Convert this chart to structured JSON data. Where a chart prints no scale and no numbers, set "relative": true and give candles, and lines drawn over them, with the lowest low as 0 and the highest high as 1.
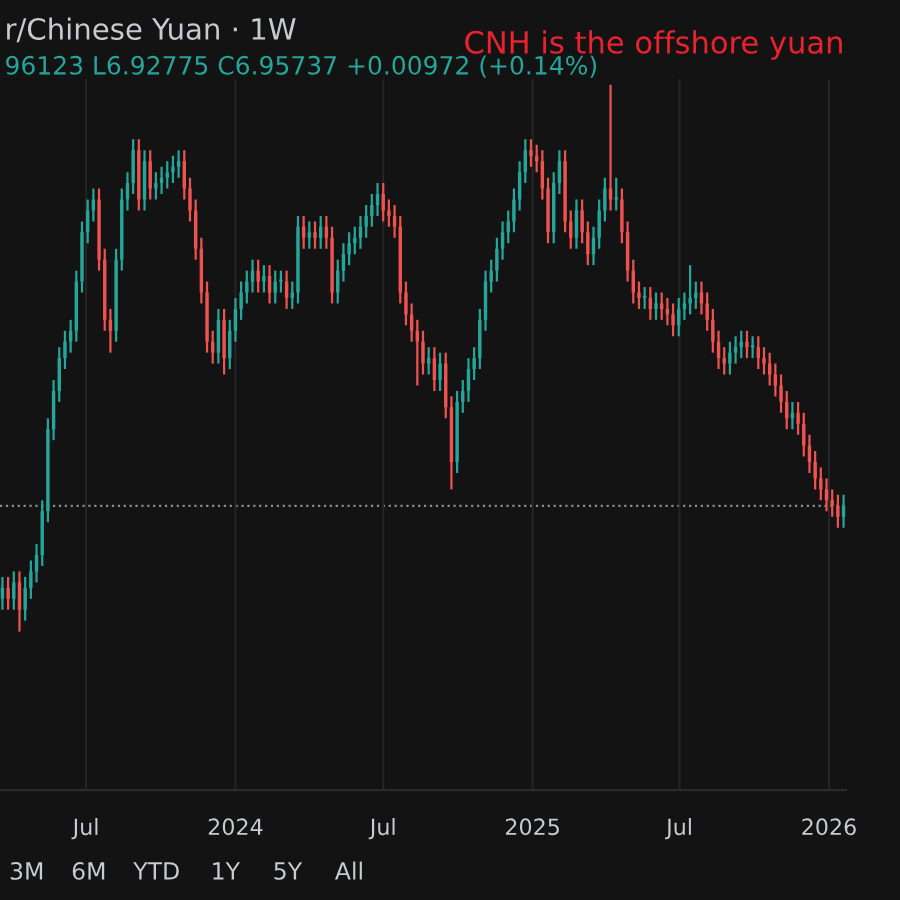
{
  "chart_data": {
    "type": "candlestick",
    "title": "r/Chinese Yuan · 1W",
    "subtitle": "96123 L6.92775 C6.95737 +0.00972 (+0.14%)",
    "annotations": [
      "CNH is the offshore yuan",
      "3M",
      "6M",
      "YTD",
      "1Y",
      "5Y",
      "All"
    ],
    "relative": true,
    "colors": [
      "#26a69a",
      "#ef5350",
      "#26a69a",
      "#ef5350",
      "#26a69a",
      "#26a69a",
      "#26a69a",
      "#26a69a",
      "#26a69a",
      "#26a69a",
      "#26a69a",
      "#26a69a",
      "#26a69a",
      "#26a69a",
      "#26a69a",
      "#26a69a",
      "#26a69a",
      "#ef5350",
      "#ef5350",
      "#ef5350",
      "#26a69a",
      "#26a69a",
      "#26a69a",
      "#26a69a",
      "#ef5350",
      "#26a69a",
      "#ef5350",
      "#26a69a",
      "#26a69a",
      "#26a69a",
      "#26a69a",
      "#26a69a",
      "#ef5350",
      "#ef5350",
      "#ef5350",
      "#ef5350",
      "#ef5350",
      "#ef5350",
      "#26a69a",
      "#ef5350",
      "#26a69a",
      "#26a69a",
      "#26a69a",
      "#26a69a",
      "#26a69a",
      "#ef5350",
      "#26a69a",
      "#ef5350",
      "#26a69a",
      "#26a69a",
      "#ef5350",
      "#26a69a",
      "#26a69a",
      "#ef5350",
      "#26a69a",
      "#ef5350",
      "#26a69a",
      "#ef5350",
      "#ef5350",
      "#26a69a",
      "#26a69a",
      "#26a69a",
      "#26a69a",
      "#26a69a",
      "#26a69a",
      "#26a69a",
      "#26a69a",
      "#ef5350",
      "#ef5350",
      "#ef5350",
      "#ef5350",
      "#ef5350",
      "#ef5350",
      "#ef5350",
      "#ef5350",
      "#26a69a",
      "#ef5350",
      "#26a69a",
      "#ef5350",
      "#ef5350",
      "#26a69a",
      "#26a69a",
      "#26a69a",
      "#26a69a",
      "#26a69a",
      "#26a69a",
      "#26a69a",
      "#26a69a",
      "#26a69a",
      "#26a69a",
      "#26a69a",
      "#26a69a",
      "#26a69a",
      "#ef5350",
      "#ef5350",
      "#ef5350",
      "#ef5350",
      "#26a69a",
      "#26a69a",
      "#ef5350",
      "#ef5350",
      "#26a69a",
      "#ef5350",
      "#ef5350",
      "#26a69a",
      "#26a69a",
      "#26a69a",
      "#ef5350",
      "#26a69a",
      "#ef5350",
      "#ef5350",
      "#ef5350",
      "#ef5350",
      "#26a69a",
      "#ef5350",
      "#26a69a",
      "#ef5350",
      "#ef5350",
      "#ef5350",
      "#26a69a",
      "#26a69a",
      "#26a69a",
      "#26a69a",
      "#ef5350",
      "#ef5350",
      "#ef5350",
      "#ef5350",
      "#ef5350",
      "#26a69a",
      "#26a69a",
      "#26a69a",
      "#ef5350",
      "#26a69a",
      "#ef5350",
      "#ef5350",
      "#ef5350",
      "#ef5350",
      "#ef5350",
      "#ef5350",
      "#26a69a",
      "#ef5350",
      "#ef5350",
      "#ef5350",
      "#ef5350",
      "#ef5350",
      "#ef5350",
      "#ef5350",
      "#ef5350",
      "#26a69a"
    ],
    "grid": "x",
    "xlim": [
      "2023-03-17",
      "2026-01-22"
    ],
    "xticks": [
      {
        "value": "2023-07-01",
        "label": "Jul"
      },
      {
        "value": "2024-01-01",
        "label": "2024"
      },
      {
        "value": "2024-07-01",
        "label": "Jul"
      },
      {
        "value": "2025-01-01",
        "label": "2025"
      },
      {
        "value": "2025-07-01",
        "label": "Jul"
      },
      {
        "value": "2026-01-01",
        "label": "2026"
      }
    ],
    "ref_lines": [
      {
        "axis": "y",
        "value": 0.23,
        "color": "#8a8a8a",
        "line_style": "dotted"
      }
    ],
    "x": [
      "2023-03-20",
      "2023-03-27",
      "2023-04-03",
      "2023-04-10",
      "2023-04-17",
      "2023-04-24",
      "2023-05-01",
      "2023-05-08",
      "2023-05-15",
      "2023-05-22",
      "2023-05-29",
      "2023-06-05",
      "2023-06-12",
      "2023-06-19",
      "2023-06-26",
      "2023-07-03",
      "2023-07-10",
      "2023-07-17",
      "2023-07-24",
      "2023-07-31",
      "2023-08-07",
      "2023-08-14",
      "2023-08-21",
      "2023-08-28",
      "2023-09-04",
      "2023-09-11",
      "2023-09-18",
      "2023-09-25",
      "2023-10-02",
      "2023-10-09",
      "2023-10-16",
      "2023-10-23",
      "2023-10-30",
      "2023-11-06",
      "2023-11-13",
      "2023-11-20",
      "2023-11-27",
      "2023-12-04",
      "2023-12-11",
      "2023-12-18",
      "2023-12-25",
      "2024-01-01",
      "2024-01-08",
      "2024-01-15",
      "2024-01-22",
      "2024-01-29",
      "2024-02-05",
      "2024-02-12",
      "2024-02-19",
      "2024-02-26",
      "2024-03-04",
      "2024-03-11",
      "2024-03-18",
      "2024-03-25",
      "2024-04-01",
      "2024-04-08",
      "2024-04-15",
      "2024-04-22",
      "2024-04-29",
      "2024-05-06",
      "2024-05-13",
      "2024-05-20",
      "2024-05-27",
      "2024-06-03",
      "2024-06-10",
      "2024-06-17",
      "2024-06-24",
      "2024-07-01",
      "2024-07-08",
      "2024-07-15",
      "2024-07-22",
      "2024-07-29",
      "2024-08-05",
      "2024-08-12",
      "2024-08-19",
      "2024-08-26",
      "2024-09-02",
      "2024-09-09",
      "2024-09-16",
      "2024-09-23",
      "2024-09-30",
      "2024-10-07",
      "2024-10-14",
      "2024-10-21",
      "2024-10-28",
      "2024-11-04",
      "2024-11-11",
      "2024-11-18",
      "2024-11-25",
      "2024-12-02",
      "2024-12-09",
      "2024-12-16",
      "2024-12-23",
      "2024-12-30",
      "2025-01-06",
      "2025-01-13",
      "2025-01-20",
      "2025-01-27",
      "2025-02-03",
      "2025-02-10",
      "2025-02-17",
      "2025-02-24",
      "2025-03-03",
      "2025-03-10",
      "2025-03-17",
      "2025-03-24",
      "2025-03-31",
      "2025-04-07",
      "2025-04-14",
      "2025-04-21",
      "2025-04-28",
      "2025-05-05",
      "2025-05-12",
      "2025-05-19",
      "2025-05-26",
      "2025-06-02",
      "2025-06-09",
      "2025-06-16",
      "2025-06-23",
      "2025-06-30",
      "2025-07-07",
      "2025-07-14",
      "2025-07-21",
      "2025-07-28",
      "2025-08-04",
      "2025-08-11",
      "2025-08-18",
      "2025-08-25",
      "2025-09-01",
      "2025-09-08",
      "2025-09-15",
      "2025-09-22",
      "2025-09-29",
      "2025-10-06",
      "2025-10-13",
      "2025-10-20",
      "2025-10-27",
      "2025-11-03",
      "2025-11-10",
      "2025-11-17",
      "2025-11-24",
      "2025-12-01",
      "2025-12-08",
      "2025-12-15",
      "2025-12-22",
      "2025-12-29",
      "2026-01-05",
      "2026-01-12",
      "2026-01-19"
    ],
    "ohlc": [
      [
        0.06,
        0.1,
        0.04,
        0.08
      ],
      [
        0.08,
        0.1,
        0.04,
        0.06
      ],
      [
        0.06,
        0.11,
        0.04,
        0.09
      ],
      [
        0.09,
        0.11,
        0.0,
        0.04
      ],
      [
        0.04,
        0.1,
        0.02,
        0.08
      ],
      [
        0.08,
        0.13,
        0.06,
        0.11
      ],
      [
        0.11,
        0.16,
        0.09,
        0.14
      ],
      [
        0.14,
        0.24,
        0.12,
        0.22
      ],
      [
        0.22,
        0.39,
        0.2,
        0.37
      ],
      [
        0.37,
        0.46,
        0.35,
        0.44
      ],
      [
        0.44,
        0.52,
        0.42,
        0.5
      ],
      [
        0.5,
        0.55,
        0.48,
        0.53
      ],
      [
        0.53,
        0.57,
        0.51,
        0.55
      ],
      [
        0.55,
        0.66,
        0.53,
        0.64
      ],
      [
        0.64,
        0.75,
        0.62,
        0.73
      ],
      [
        0.73,
        0.79,
        0.71,
        0.77
      ],
      [
        0.77,
        0.81,
        0.75,
        0.79
      ],
      [
        0.79,
        0.81,
        0.66,
        0.68
      ],
      [
        0.68,
        0.7,
        0.55,
        0.57
      ],
      [
        0.57,
        0.59,
        0.51,
        0.55
      ],
      [
        0.55,
        0.7,
        0.53,
        0.68
      ],
      [
        0.68,
        0.81,
        0.66,
        0.79
      ],
      [
        0.79,
        0.84,
        0.77,
        0.82
      ],
      [
        0.82,
        0.9,
        0.8,
        0.88
      ],
      [
        0.88,
        0.9,
        0.77,
        0.79
      ],
      [
        0.79,
        0.88,
        0.77,
        0.86
      ],
      [
        0.86,
        0.88,
        0.79,
        0.81
      ],
      [
        0.81,
        0.84,
        0.79,
        0.82
      ],
      [
        0.82,
        0.85,
        0.8,
        0.83
      ],
      [
        0.83,
        0.86,
        0.81,
        0.84
      ],
      [
        0.84,
        0.87,
        0.82,
        0.85
      ],
      [
        0.85,
        0.88,
        0.83,
        0.86
      ],
      [
        0.86,
        0.88,
        0.79,
        0.81
      ],
      [
        0.81,
        0.83,
        0.75,
        0.77
      ],
      [
        0.77,
        0.79,
        0.68,
        0.7
      ],
      [
        0.7,
        0.72,
        0.6,
        0.62
      ],
      [
        0.62,
        0.64,
        0.51,
        0.53
      ],
      [
        0.53,
        0.55,
        0.49,
        0.51
      ],
      [
        0.51,
        0.59,
        0.49,
        0.57
      ],
      [
        0.57,
        0.59,
        0.47,
        0.5
      ],
      [
        0.5,
        0.57,
        0.48,
        0.55
      ],
      [
        0.55,
        0.61,
        0.53,
        0.59
      ],
      [
        0.59,
        0.64,
        0.57,
        0.62
      ],
      [
        0.62,
        0.66,
        0.6,
        0.64
      ],
      [
        0.64,
        0.68,
        0.62,
        0.66
      ],
      [
        0.66,
        0.68,
        0.62,
        0.64
      ],
      [
        0.64,
        0.67,
        0.62,
        0.65
      ],
      [
        0.65,
        0.67,
        0.6,
        0.62
      ],
      [
        0.62,
        0.66,
        0.6,
        0.64
      ],
      [
        0.64,
        0.66,
        0.62,
        0.64
      ],
      [
        0.64,
        0.66,
        0.59,
        0.61
      ],
      [
        0.61,
        0.64,
        0.59,
        0.62
      ],
      [
        0.62,
        0.76,
        0.6,
        0.74
      ],
      [
        0.74,
        0.76,
        0.7,
        0.72
      ],
      [
        0.72,
        0.75,
        0.7,
        0.73
      ],
      [
        0.73,
        0.75,
        0.7,
        0.72
      ],
      [
        0.72,
        0.76,
        0.7,
        0.74
      ],
      [
        0.74,
        0.76,
        0.7,
        0.72
      ],
      [
        0.72,
        0.74,
        0.6,
        0.62
      ],
      [
        0.62,
        0.68,
        0.6,
        0.66
      ],
      [
        0.66,
        0.71,
        0.64,
        0.69
      ],
      [
        0.69,
        0.73,
        0.67,
        0.71
      ],
      [
        0.71,
        0.74,
        0.69,
        0.72
      ],
      [
        0.72,
        0.76,
        0.7,
        0.74
      ],
      [
        0.74,
        0.78,
        0.72,
        0.76
      ],
      [
        0.76,
        0.8,
        0.74,
        0.78
      ],
      [
        0.78,
        0.82,
        0.76,
        0.8
      ],
      [
        0.8,
        0.82,
        0.75,
        0.77
      ],
      [
        0.77,
        0.79,
        0.74,
        0.76
      ],
      [
        0.76,
        0.78,
        0.72,
        0.74
      ],
      [
        0.74,
        0.76,
        0.6,
        0.62
      ],
      [
        0.62,
        0.64,
        0.56,
        0.58
      ],
      [
        0.58,
        0.6,
        0.53,
        0.55
      ],
      [
        0.55,
        0.57,
        0.45,
        0.53
      ],
      [
        0.53,
        0.55,
        0.47,
        0.49
      ],
      [
        0.49,
        0.52,
        0.47,
        0.5
      ],
      [
        0.5,
        0.52,
        0.44,
        0.46
      ],
      [
        0.46,
        0.51,
        0.44,
        0.49
      ],
      [
        0.49,
        0.51,
        0.39,
        0.41
      ],
      [
        0.41,
        0.43,
        0.26,
        0.31
      ],
      [
        0.31,
        0.44,
        0.29,
        0.42
      ],
      [
        0.42,
        0.46,
        0.4,
        0.44
      ],
      [
        0.44,
        0.5,
        0.42,
        0.48
      ],
      [
        0.48,
        0.52,
        0.46,
        0.5
      ],
      [
        0.5,
        0.59,
        0.48,
        0.57
      ],
      [
        0.57,
        0.66,
        0.55,
        0.64
      ],
      [
        0.64,
        0.68,
        0.62,
        0.66
      ],
      [
        0.66,
        0.72,
        0.64,
        0.7
      ],
      [
        0.7,
        0.75,
        0.68,
        0.73
      ],
      [
        0.73,
        0.77,
        0.71,
        0.75
      ],
      [
        0.75,
        0.81,
        0.73,
        0.79
      ],
      [
        0.79,
        0.86,
        0.77,
        0.84
      ],
      [
        0.84,
        0.9,
        0.82,
        0.88
      ],
      [
        0.88,
        0.9,
        0.85,
        0.87
      ],
      [
        0.87,
        0.89,
        0.84,
        0.86
      ],
      [
        0.86,
        0.88,
        0.79,
        0.81
      ],
      [
        0.81,
        0.83,
        0.71,
        0.73
      ],
      [
        0.73,
        0.84,
        0.71,
        0.82
      ],
      [
        0.82,
        0.88,
        0.8,
        0.86
      ],
      [
        0.86,
        0.88,
        0.73,
        0.75
      ],
      [
        0.75,
        0.77,
        0.7,
        0.72
      ],
      [
        0.72,
        0.79,
        0.7,
        0.77
      ],
      [
        0.77,
        0.79,
        0.71,
        0.73
      ],
      [
        0.73,
        0.75,
        0.67,
        0.69
      ],
      [
        0.69,
        0.74,
        0.67,
        0.72
      ],
      [
        0.72,
        0.79,
        0.7,
        0.77
      ],
      [
        0.77,
        0.83,
        0.75,
        0.81
      ],
      [
        0.81,
        1.0,
        0.77,
        0.79
      ],
      [
        0.79,
        0.83,
        0.77,
        0.79
      ],
      [
        0.79,
        0.81,
        0.71,
        0.73
      ],
      [
        0.73,
        0.75,
        0.64,
        0.66
      ],
      [
        0.66,
        0.68,
        0.6,
        0.62
      ],
      [
        0.62,
        0.64,
        0.59,
        0.61
      ],
      [
        0.61,
        0.63,
        0.59,
        0.61
      ],
      [
        0.61,
        0.63,
        0.57,
        0.59
      ],
      [
        0.59,
        0.62,
        0.57,
        0.6
      ],
      [
        0.6,
        0.62,
        0.57,
        0.59
      ],
      [
        0.59,
        0.61,
        0.56,
        0.58
      ],
      [
        0.58,
        0.6,
        0.54,
        0.56
      ],
      [
        0.56,
        0.61,
        0.54,
        0.59
      ],
      [
        0.59,
        0.62,
        0.57,
        0.6
      ],
      [
        0.6,
        0.67,
        0.58,
        0.61
      ],
      [
        0.61,
        0.64,
        0.59,
        0.62
      ],
      [
        0.62,
        0.64,
        0.58,
        0.6
      ],
      [
        0.6,
        0.62,
        0.55,
        0.57
      ],
      [
        0.57,
        0.59,
        0.51,
        0.53
      ],
      [
        0.53,
        0.55,
        0.48,
        0.5
      ],
      [
        0.5,
        0.52,
        0.47,
        0.49
      ],
      [
        0.49,
        0.53,
        0.47,
        0.51
      ],
      [
        0.51,
        0.54,
        0.49,
        0.52
      ],
      [
        0.52,
        0.55,
        0.5,
        0.53
      ],
      [
        0.53,
        0.55,
        0.5,
        0.52
      ],
      [
        0.52,
        0.54,
        0.5,
        0.52
      ],
      [
        0.52,
        0.54,
        0.48,
        0.5
      ],
      [
        0.5,
        0.52,
        0.47,
        0.49
      ],
      [
        0.49,
        0.51,
        0.45,
        0.47
      ],
      [
        0.47,
        0.49,
        0.43,
        0.45
      ],
      [
        0.45,
        0.47,
        0.4,
        0.42
      ],
      [
        0.42,
        0.44,
        0.37,
        0.39
      ],
      [
        0.39,
        0.42,
        0.37,
        0.4
      ],
      [
        0.4,
        0.42,
        0.36,
        0.38
      ],
      [
        0.38,
        0.4,
        0.32,
        0.34
      ],
      [
        0.34,
        0.36,
        0.29,
        0.31
      ],
      [
        0.31,
        0.33,
        0.26,
        0.28
      ],
      [
        0.28,
        0.3,
        0.24,
        0.26
      ],
      [
        0.26,
        0.28,
        0.22,
        0.24
      ],
      [
        0.24,
        0.26,
        0.21,
        0.23
      ],
      [
        0.23,
        0.25,
        0.19,
        0.21
      ],
      [
        0.21,
        0.25,
        0.19,
        0.23
      ]
    ]
  }
}
